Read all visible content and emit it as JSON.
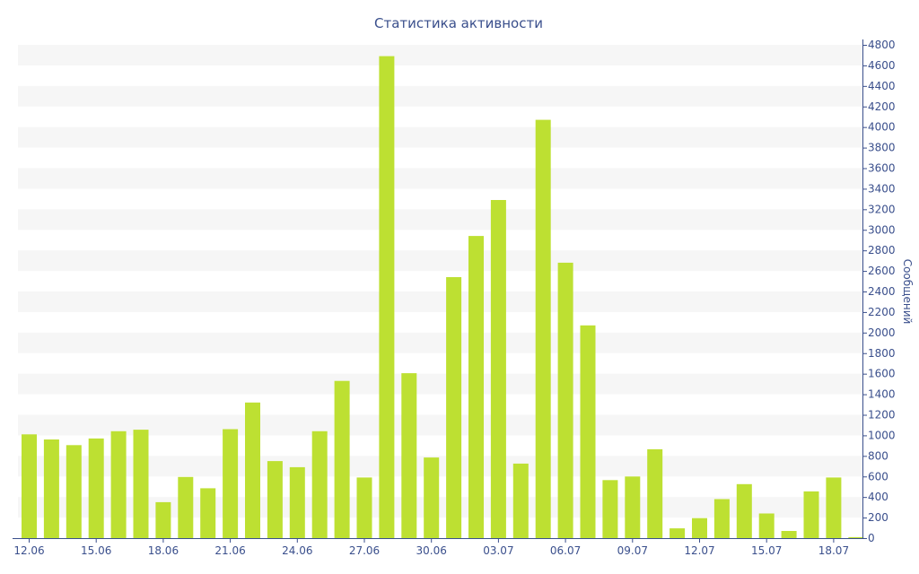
{
  "chart_data": {
    "type": "bar",
    "title": "Статистика активности",
    "xlabel": "",
    "ylabel": "Сообщений",
    "y_axis_side": "right",
    "ylim": [
      0,
      4800
    ],
    "y_ticks": [
      0,
      200,
      400,
      600,
      800,
      1000,
      1200,
      1400,
      1600,
      1800,
      2000,
      2200,
      2400,
      2600,
      2800,
      3000,
      3200,
      3400,
      3600,
      3800,
      4000,
      4200,
      4400,
      4600,
      4800
    ],
    "grid": "alternating horizontal bands",
    "categories": [
      "12.06",
      "13.06",
      "14.06",
      "15.06",
      "16.06",
      "17.06",
      "18.06",
      "19.06",
      "20.06",
      "21.06",
      "22.06",
      "23.06",
      "24.06",
      "25.06",
      "26.06",
      "27.06",
      "28.06",
      "29.06",
      "30.06",
      "01.07",
      "02.07",
      "03.07",
      "04.07",
      "05.07",
      "06.07",
      "07.07",
      "08.07",
      "09.07",
      "10.07",
      "11.07",
      "12.07",
      "13.07",
      "14.07",
      "15.07",
      "16.07",
      "17.07",
      "18.07",
      "19.07"
    ],
    "x_tick_labels": [
      "12.06",
      "15.06",
      "18.06",
      "21.06",
      "24.06",
      "27.06",
      "30.06",
      "03.07",
      "06.07",
      "09.07",
      "12.07",
      "15.07",
      "18.07"
    ],
    "values": [
      1010,
      960,
      905,
      970,
      1040,
      1055,
      350,
      595,
      485,
      1060,
      1320,
      750,
      690,
      1040,
      1530,
      590,
      4690,
      1605,
      785,
      2540,
      2940,
      3290,
      725,
      4070,
      2680,
      2070,
      565,
      600,
      865,
      95,
      195,
      380,
      525,
      240,
      70,
      455,
      590,
      10
    ],
    "colors": {
      "bar": "#bde032",
      "band": "#f6f6f6",
      "axis": "#3a4f8c",
      "text": "#3a4f8c"
    }
  }
}
